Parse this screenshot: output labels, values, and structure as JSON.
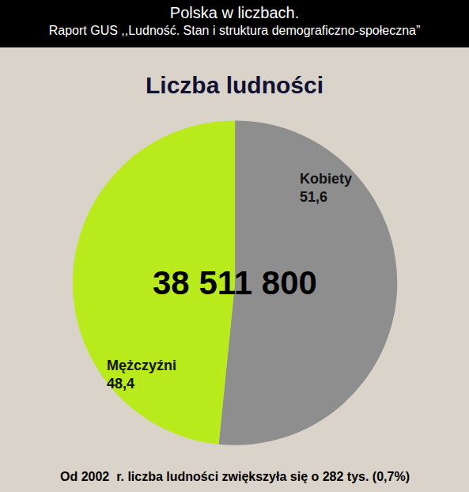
{
  "header": {
    "title": "Polska w liczbach.",
    "subtitle": "Raport GUS ,,Ludność. Stan i struktura demograficzno-społeczna”"
  },
  "chart_data": {
    "type": "pie",
    "title": "Liczba ludności",
    "categories": [
      "Kobiety",
      "Mężczyźni"
    ],
    "values": [
      51.6,
      48.4
    ],
    "value_labels": [
      "51,6",
      "48,4"
    ],
    "colors": [
      "#8e8e8e",
      "#b8ea1c"
    ],
    "data_labels": true,
    "annotations": [
      "38 511 800",
      "Od 2002  r. liczba ludności zwiększyła się o 282 tys. (0,7%)"
    ]
  }
}
